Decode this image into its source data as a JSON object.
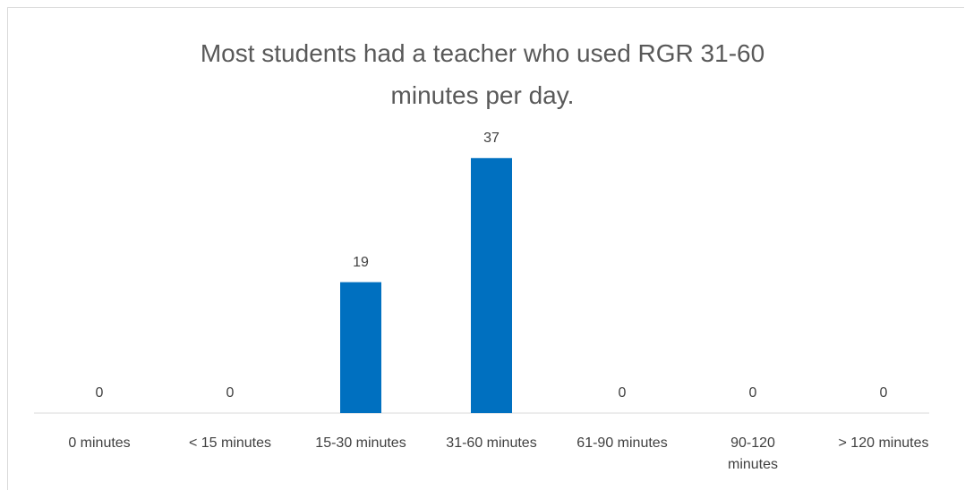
{
  "chart_data": {
    "type": "bar",
    "title": "Most students had a teacher who used RGR 31-60 minutes per day.",
    "categories": [
      "0 minutes",
      "< 15 minutes",
      "15-30 minutes",
      "31-60 minutes",
      "61-90 minutes",
      "90-120 minutes",
      "> 120 minutes"
    ],
    "values": [
      0,
      0,
      19,
      37,
      0,
      0,
      0
    ],
    "color": "#0070c0",
    "grid": false
  }
}
